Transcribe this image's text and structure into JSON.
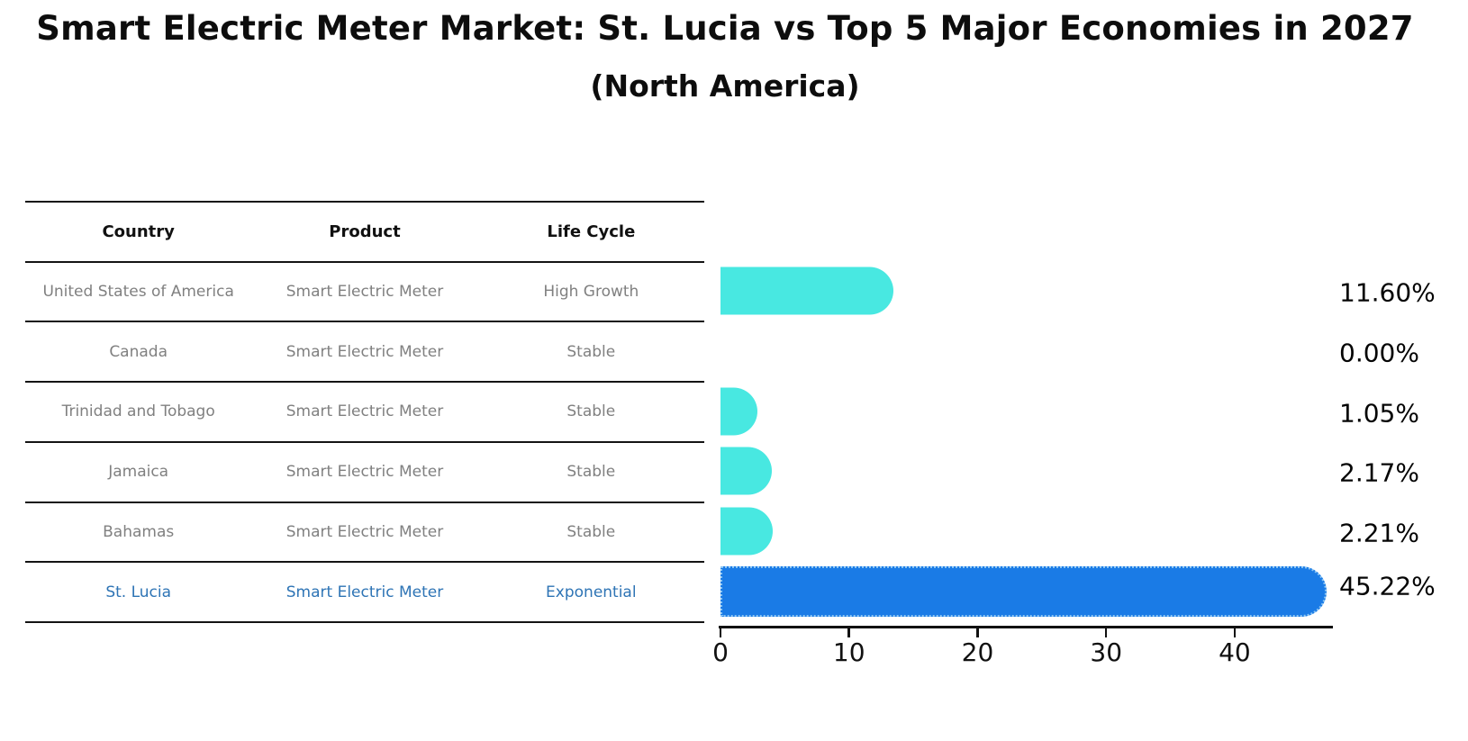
{
  "header": {
    "title": "Smart Electric Meter Market: St. Lucia vs Top 5 Major Economies in 2027",
    "subtitle": "(North America)"
  },
  "table": {
    "columns": [
      "Country",
      "Product",
      "Life Cycle"
    ],
    "rows": [
      {
        "country": "United States of America",
        "product": "Smart Electric Meter",
        "life_cycle": "High Growth",
        "highlight": false
      },
      {
        "country": "Canada",
        "product": "Smart Electric Meter",
        "life_cycle": "Stable",
        "highlight": false
      },
      {
        "country": "Trinidad and Tobago",
        "product": "Smart Electric Meter",
        "life_cycle": "Stable",
        "highlight": false
      },
      {
        "country": "Jamaica",
        "product": "Smart Electric Meter",
        "life_cycle": "Stable",
        "highlight": false
      },
      {
        "country": "Bahamas",
        "product": "Smart Electric Meter",
        "life_cycle": "Stable",
        "highlight": false
      },
      {
        "country": "St. Lucia",
        "product": "Smart Electric Meter",
        "life_cycle": "Exponential",
        "highlight": true
      }
    ]
  },
  "chart_data": {
    "type": "bar",
    "orientation": "horizontal",
    "title": "Smart Electric Meter Market: St. Lucia vs Top 5 Major Economies in 2027 (North America)",
    "categories": [
      "United States of America",
      "Canada",
      "Trinidad and Tobago",
      "Jamaica",
      "Bahamas",
      "St. Lucia"
    ],
    "values": [
      11.6,
      0.0,
      1.05,
      2.17,
      2.21,
      45.22
    ],
    "value_labels": [
      "11.60%",
      "0.00%",
      "1.05%",
      "2.17%",
      "2.21%",
      "45.22%"
    ],
    "x_ticks": [
      "0",
      "10",
      "20",
      "30",
      "40"
    ],
    "x_tick_values": [
      0,
      10,
      20,
      30,
      40
    ],
    "xlim": [
      0,
      47.5
    ],
    "grid": false,
    "legend": "none",
    "highlight_index": 5,
    "bar_color": "#48E8E1",
    "highlight_color": "#1A7BE6"
  },
  "colors": {
    "accent_cyan": "#48E8E1",
    "accent_blue": "#1A7BE6",
    "highlight_text": "#2E74B5",
    "row_text": "#808080",
    "table_line": "#141414"
  }
}
